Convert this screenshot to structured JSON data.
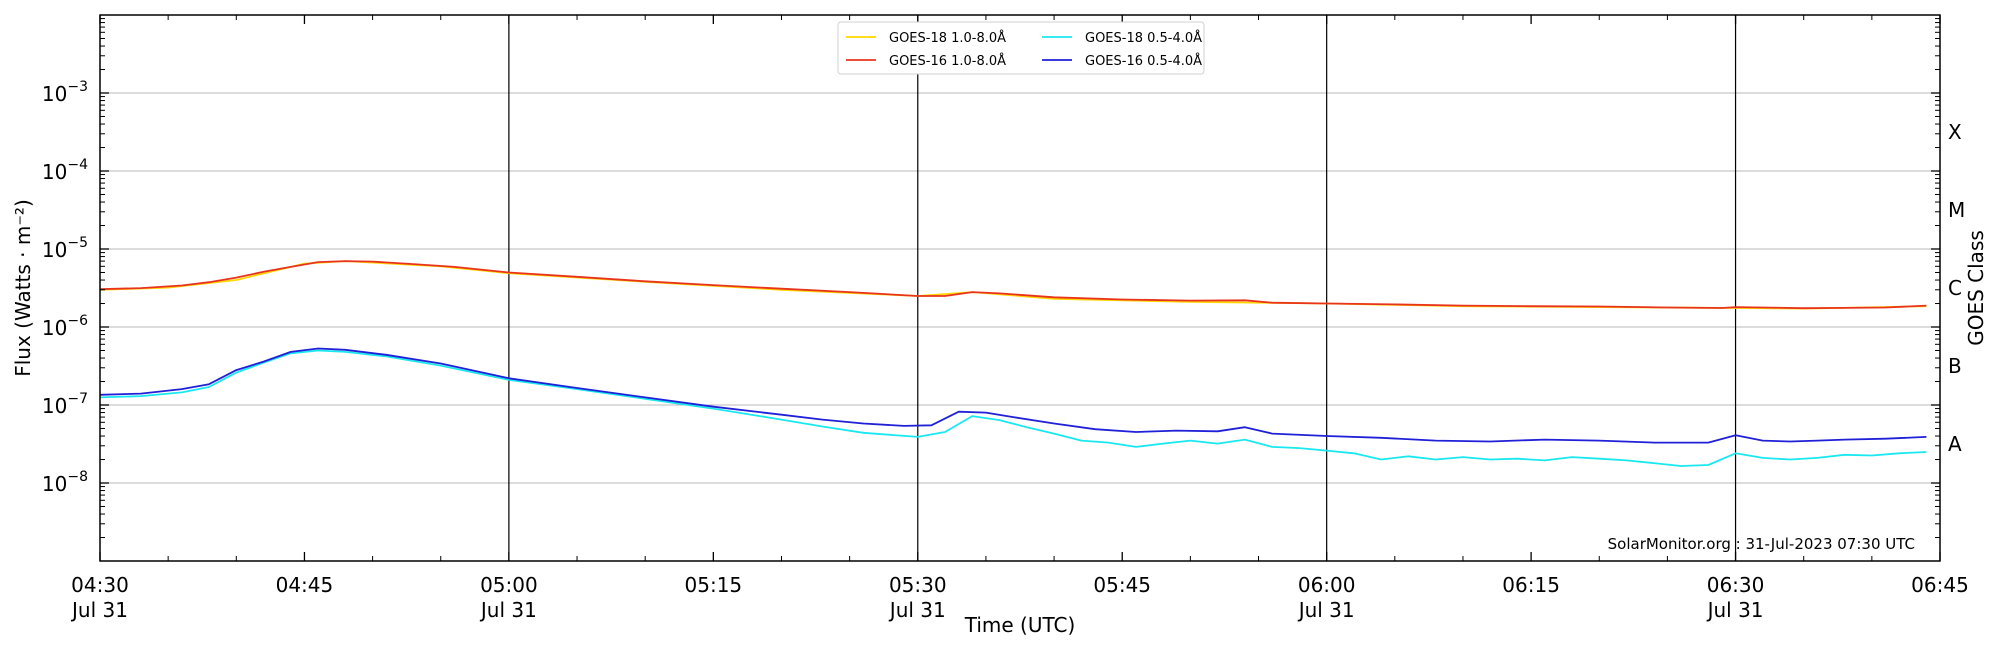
{
  "chart_data": {
    "type": "line",
    "xlabel": "Time (UTC)",
    "ylabel": "Flux (Watts · m⁻²)",
    "y2label": "GOES Class",
    "yscale": "log",
    "ylim": [
      1e-09,
      0.01
    ],
    "xlim": [
      "04:30",
      "06:45"
    ],
    "grid": "horizontal",
    "legend_position": "top-center",
    "x_ticks": [
      {
        "t": "04:30",
        "label": "04:30",
        "sublabel": "Jul 31"
      },
      {
        "t": "04:45",
        "label": "04:45",
        "sublabel": ""
      },
      {
        "t": "05:00",
        "label": "05:00",
        "sublabel": "Jul 31"
      },
      {
        "t": "05:15",
        "label": "05:15",
        "sublabel": ""
      },
      {
        "t": "05:30",
        "label": "05:30",
        "sublabel": "Jul 31"
      },
      {
        "t": "05:45",
        "label": "05:45",
        "sublabel": ""
      },
      {
        "t": "06:00",
        "label": "06:00",
        "sublabel": "Jul 31"
      },
      {
        "t": "06:15",
        "label": "06:15",
        "sublabel": ""
      },
      {
        "t": "06:30",
        "label": "06:30",
        "sublabel": "Jul 31"
      },
      {
        "t": "06:45",
        "label": "06:45",
        "sublabel": ""
      }
    ],
    "vlines": [
      "05:00",
      "05:30",
      "06:00",
      "06:30"
    ],
    "y_ticks": [
      {
        "value": 1e-08,
        "base": "10",
        "exp": "−8"
      },
      {
        "value": 1e-07,
        "base": "10",
        "exp": "−7"
      },
      {
        "value": 1e-06,
        "base": "10",
        "exp": "−6"
      },
      {
        "value": 1e-05,
        "base": "10",
        "exp": "−5"
      },
      {
        "value": 0.0001,
        "base": "10",
        "exp": "−4"
      },
      {
        "value": 0.001,
        "base": "10",
        "exp": "−3"
      }
    ],
    "goes_classes": [
      {
        "label": "A",
        "value": 3.16e-08
      },
      {
        "label": "B",
        "value": 3.16e-07
      },
      {
        "label": "C",
        "value": 3.16e-06
      },
      {
        "label": "M",
        "value": 3.16e-05
      },
      {
        "label": "X",
        "value": 0.000316
      }
    ],
    "series": [
      {
        "name": "GOES-18 1.0-8.0Å",
        "color": "#ffd700",
        "points": [
          [
            "04:30",
            3e-06
          ],
          [
            "04:35",
            3.2e-06
          ],
          [
            "04:40",
            4e-06
          ],
          [
            "04:45",
            6.5e-06
          ],
          [
            "04:48",
            7e-06
          ],
          [
            "04:55",
            6e-06
          ],
          [
            "05:00",
            4.9e-06
          ],
          [
            "05:10",
            3.8e-06
          ],
          [
            "05:20",
            3e-06
          ],
          [
            "05:30",
            2.5e-06
          ],
          [
            "05:34",
            2.8e-06
          ],
          [
            "05:40",
            2.3e-06
          ],
          [
            "05:50",
            2.1e-06
          ],
          [
            "06:00",
            2e-06
          ],
          [
            "06:10",
            1.85e-06
          ],
          [
            "06:20",
            1.8e-06
          ],
          [
            "06:30",
            1.75e-06
          ],
          [
            "06:35",
            1.72e-06
          ],
          [
            "06:44",
            1.85e-06
          ]
        ]
      },
      {
        "name": "GOES-16 1.0-8.0Å",
        "color": "#e8341c",
        "points": [
          [
            "04:30",
            3.05e-06
          ],
          [
            "04:33",
            3.15e-06
          ],
          [
            "04:36",
            3.4e-06
          ],
          [
            "04:38",
            3.75e-06
          ],
          [
            "04:40",
            4.3e-06
          ],
          [
            "04:42",
            5.1e-06
          ],
          [
            "04:44",
            5.9e-06
          ],
          [
            "04:46",
            6.8e-06
          ],
          [
            "04:48",
            7e-06
          ],
          [
            "04:50",
            6.9e-06
          ],
          [
            "04:53",
            6.4e-06
          ],
          [
            "04:56",
            5.9e-06
          ],
          [
            "05:00",
            5e-06
          ],
          [
            "05:05",
            4.4e-06
          ],
          [
            "05:10",
            3.85e-06
          ],
          [
            "05:15",
            3.45e-06
          ],
          [
            "05:20",
            3.1e-06
          ],
          [
            "05:25",
            2.8e-06
          ],
          [
            "05:30",
            2.5e-06
          ],
          [
            "05:32",
            2.5e-06
          ],
          [
            "05:34",
            2.8e-06
          ],
          [
            "05:36",
            2.7e-06
          ],
          [
            "05:40",
            2.4e-06
          ],
          [
            "05:45",
            2.25e-06
          ],
          [
            "05:50",
            2.18e-06
          ],
          [
            "05:54",
            2.2e-06
          ],
          [
            "05:56",
            2.05e-06
          ],
          [
            "06:00",
            2e-06
          ],
          [
            "06:05",
            1.95e-06
          ],
          [
            "06:10",
            1.88e-06
          ],
          [
            "06:15",
            1.85e-06
          ],
          [
            "06:20",
            1.83e-06
          ],
          [
            "06:25",
            1.78e-06
          ],
          [
            "06:29",
            1.75e-06
          ],
          [
            "06:30",
            1.8e-06
          ],
          [
            "06:32",
            1.78e-06
          ],
          [
            "06:35",
            1.74e-06
          ],
          [
            "06:38",
            1.76e-06
          ],
          [
            "06:41",
            1.78e-06
          ],
          [
            "06:44",
            1.88e-06
          ]
        ]
      },
      {
        "name": "GOES-18 0.5-4.0Å",
        "color": "#19e8f0",
        "points": [
          [
            "04:30",
            1.25e-07
          ],
          [
            "04:33",
            1.3e-07
          ],
          [
            "04:36",
            1.45e-07
          ],
          [
            "04:38",
            1.7e-07
          ],
          [
            "04:40",
            2.6e-07
          ],
          [
            "04:42",
            3.5e-07
          ],
          [
            "04:44",
            4.6e-07
          ],
          [
            "04:46",
            5e-07
          ],
          [
            "04:48",
            4.8e-07
          ],
          [
            "04:51",
            4.2e-07
          ],
          [
            "04:55",
            3.2e-07
          ],
          [
            "05:00",
            2.1e-07
          ],
          [
            "05:05",
            1.6e-07
          ],
          [
            "05:10",
            1.2e-07
          ],
          [
            "05:15",
            9e-08
          ],
          [
            "05:20",
            6.5e-08
          ],
          [
            "05:23",
            5.3e-08
          ],
          [
            "05:26",
            4.4e-08
          ],
          [
            "05:30",
            3.9e-08
          ],
          [
            "05:32",
            4.5e-08
          ],
          [
            "05:34",
            7.2e-08
          ],
          [
            "05:36",
            6.4e-08
          ],
          [
            "05:38",
            5.2e-08
          ],
          [
            "05:40",
            4.3e-08
          ],
          [
            "05:42",
            3.5e-08
          ],
          [
            "05:44",
            3.3e-08
          ],
          [
            "05:46",
            2.9e-08
          ],
          [
            "05:48",
            3.2e-08
          ],
          [
            "05:50",
            3.5e-08
          ],
          [
            "05:52",
            3.2e-08
          ],
          [
            "05:54",
            3.6e-08
          ],
          [
            "05:56",
            2.9e-08
          ],
          [
            "05:58",
            2.8e-08
          ],
          [
            "06:00",
            2.6e-08
          ],
          [
            "06:02",
            2.4e-08
          ],
          [
            "06:04",
            2e-08
          ],
          [
            "06:06",
            2.2e-08
          ],
          [
            "06:08",
            2e-08
          ],
          [
            "06:10",
            2.15e-08
          ],
          [
            "06:12",
            2e-08
          ],
          [
            "06:14",
            2.05e-08
          ],
          [
            "06:16",
            1.95e-08
          ],
          [
            "06:18",
            2.15e-08
          ],
          [
            "06:20",
            2.05e-08
          ],
          [
            "06:22",
            1.95e-08
          ],
          [
            "06:24",
            1.8e-08
          ],
          [
            "06:26",
            1.65e-08
          ],
          [
            "06:28",
            1.7e-08
          ],
          [
            "06:30",
            2.4e-08
          ],
          [
            "06:32",
            2.1e-08
          ],
          [
            "06:34",
            2e-08
          ],
          [
            "06:36",
            2.1e-08
          ],
          [
            "06:38",
            2.3e-08
          ],
          [
            "06:40",
            2.25e-08
          ],
          [
            "06:42",
            2.4e-08
          ],
          [
            "06:44",
            2.5e-08
          ]
        ]
      },
      {
        "name": "GOES-16 0.5-4.0Å",
        "color": "#2020d8",
        "points": [
          [
            "04:30",
            1.35e-07
          ],
          [
            "04:33",
            1.4e-07
          ],
          [
            "04:36",
            1.6e-07
          ],
          [
            "04:38",
            1.85e-07
          ],
          [
            "04:40",
            2.8e-07
          ],
          [
            "04:42",
            3.6e-07
          ],
          [
            "04:44",
            4.8e-07
          ],
          [
            "04:46",
            5.3e-07
          ],
          [
            "04:48",
            5.1e-07
          ],
          [
            "04:51",
            4.4e-07
          ],
          [
            "04:55",
            3.4e-07
          ],
          [
            "05:00",
            2.2e-07
          ],
          [
            "05:05",
            1.65e-07
          ],
          [
            "05:10",
            1.25e-07
          ],
          [
            "05:15",
            9.5e-08
          ],
          [
            "05:20",
            7.5e-08
          ],
          [
            "05:23",
            6.5e-08
          ],
          [
            "05:26",
            5.8e-08
          ],
          [
            "05:29",
            5.4e-08
          ],
          [
            "05:31",
            5.5e-08
          ],
          [
            "05:33",
            8.2e-08
          ],
          [
            "05:35",
            8e-08
          ],
          [
            "05:37",
            7e-08
          ],
          [
            "05:40",
            5.8e-08
          ],
          [
            "05:43",
            4.9e-08
          ],
          [
            "05:46",
            4.5e-08
          ],
          [
            "05:49",
            4.7e-08
          ],
          [
            "05:52",
            4.6e-08
          ],
          [
            "05:54",
            5.2e-08
          ],
          [
            "05:56",
            4.3e-08
          ],
          [
            "06:00",
            4e-08
          ],
          [
            "06:04",
            3.8e-08
          ],
          [
            "06:08",
            3.5e-08
          ],
          [
            "06:12",
            3.4e-08
          ],
          [
            "06:16",
            3.6e-08
          ],
          [
            "06:20",
            3.5e-08
          ],
          [
            "06:24",
            3.3e-08
          ],
          [
            "06:28",
            3.3e-08
          ],
          [
            "06:30",
            4.1e-08
          ],
          [
            "06:32",
            3.5e-08
          ],
          [
            "06:34",
            3.4e-08
          ],
          [
            "06:36",
            3.5e-08
          ],
          [
            "06:38",
            3.6e-08
          ],
          [
            "06:41",
            3.7e-08
          ],
          [
            "06:44",
            3.9e-08
          ]
        ]
      }
    ],
    "annotation": "SolarMonitor.org : 31-Jul-2023 07:30 UTC"
  }
}
